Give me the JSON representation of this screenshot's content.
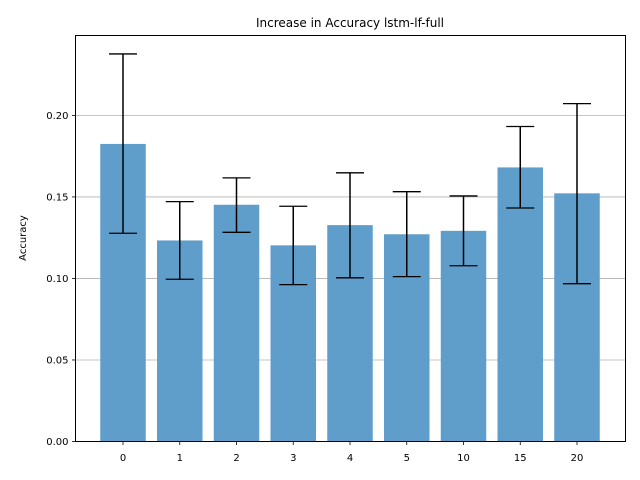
{
  "chart_data": {
    "type": "bar",
    "title": "Increase in Accuracy lstm-lf-full",
    "xlabel": "",
    "ylabel": "Accuracy",
    "categories": [
      "0",
      "1",
      "2",
      "3",
      "4",
      "5",
      "10",
      "15",
      "20"
    ],
    "values": [
      0.1825,
      0.1233,
      0.1452,
      0.1203,
      0.1327,
      0.1271,
      0.1292,
      0.1681,
      0.1522
    ],
    "error_low": [
      0.1277,
      0.0995,
      0.1283,
      0.0962,
      0.1004,
      0.1011,
      0.1078,
      0.1432,
      0.0968
    ],
    "error_high": [
      0.2377,
      0.1471,
      0.1617,
      0.1443,
      0.1648,
      0.1532,
      0.1506,
      0.1932,
      0.2072
    ],
    "ylim": [
      0,
      0.249
    ],
    "yticks": [
      "0.00",
      "0.05",
      "0.10",
      "0.15",
      "0.20"
    ],
    "grid": "y-axis",
    "colors": {
      "bar": "#5f9ecb",
      "errorbar": "#000000",
      "grid": "#b0b0b0"
    }
  }
}
